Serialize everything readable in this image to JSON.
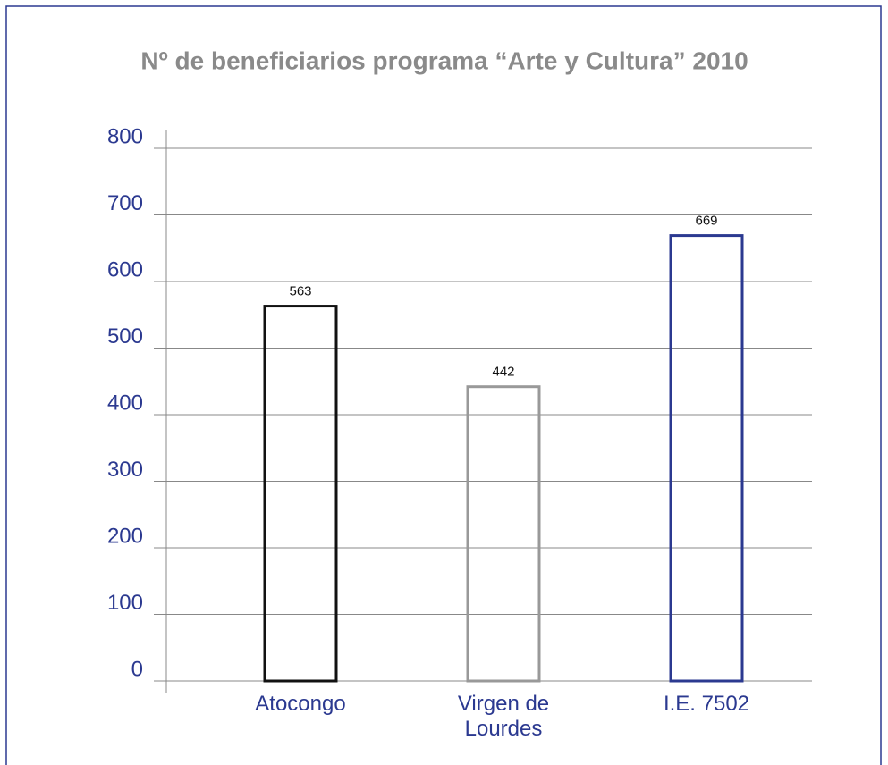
{
  "chart_data": {
    "type": "bar",
    "title": "Nº de beneficiarios programa “Arte y Cultura” 2010",
    "categories": [
      "Atocongo",
      "Virgen de Lourdes",
      "I.E. 7502"
    ],
    "values": [
      563,
      442,
      669
    ],
    "colors": [
      "#111111",
      "#999999",
      "#2b3990"
    ],
    "ylim": [
      0,
      800
    ],
    "yticks": [
      0,
      100,
      200,
      300,
      400,
      500,
      600,
      700,
      800
    ],
    "grid": true
  }
}
